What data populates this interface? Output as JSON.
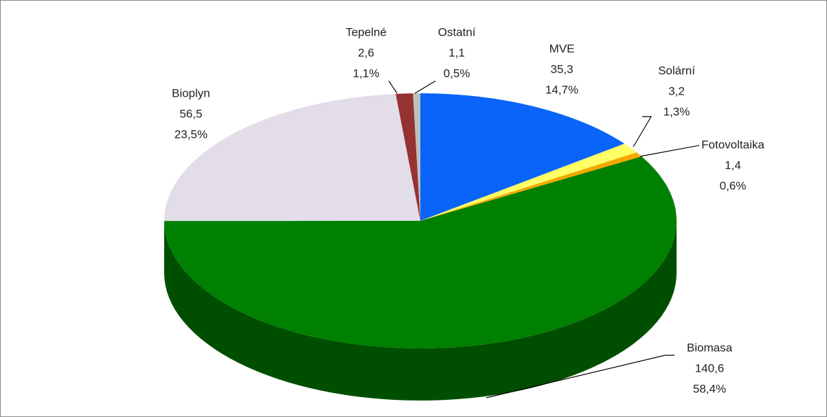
{
  "chart_data": {
    "type": "pie3d",
    "categories": [
      "MVE",
      "Solární",
      "Fotovoltaika",
      "Biomasa",
      "Bioplyn",
      "Tepelné",
      "Ostatní"
    ],
    "values": [
      35.3,
      3.2,
      1.4,
      140.6,
      56.5,
      2.6,
      1.1
    ],
    "value_labels": [
      "35,3",
      "3,2",
      "1,4",
      "140,6",
      "56,5",
      "2,6",
      "1,1"
    ],
    "percents": [
      14.7,
      1.3,
      0.6,
      58.4,
      23.5,
      1.1,
      0.5
    ],
    "percent_labels": [
      "14,7%",
      "1,3%",
      "0,6%",
      "58,4%",
      "23,5%",
      "1,1%",
      "0,5%"
    ],
    "colors": [
      "#0a64fa",
      "#ffff66",
      "#f5a800",
      "#008000",
      "#e2dde8",
      "#953333",
      "#bfbfbf"
    ]
  }
}
